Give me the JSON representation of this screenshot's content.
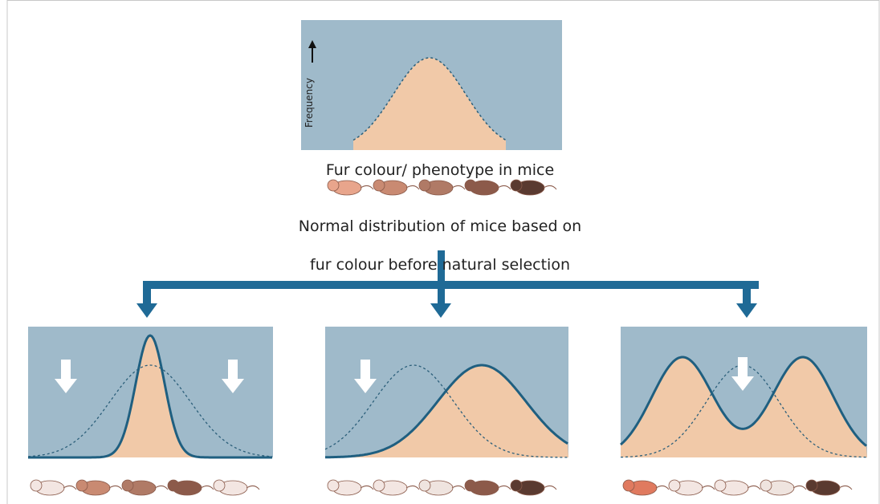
{
  "labels": {
    "y_axis": "Frequency",
    "x_axis": "Fur colour/ phenotype in mice",
    "caption": [
      "Normal distribution of mice based on",
      "fur colour before natural selection"
    ]
  }
}
